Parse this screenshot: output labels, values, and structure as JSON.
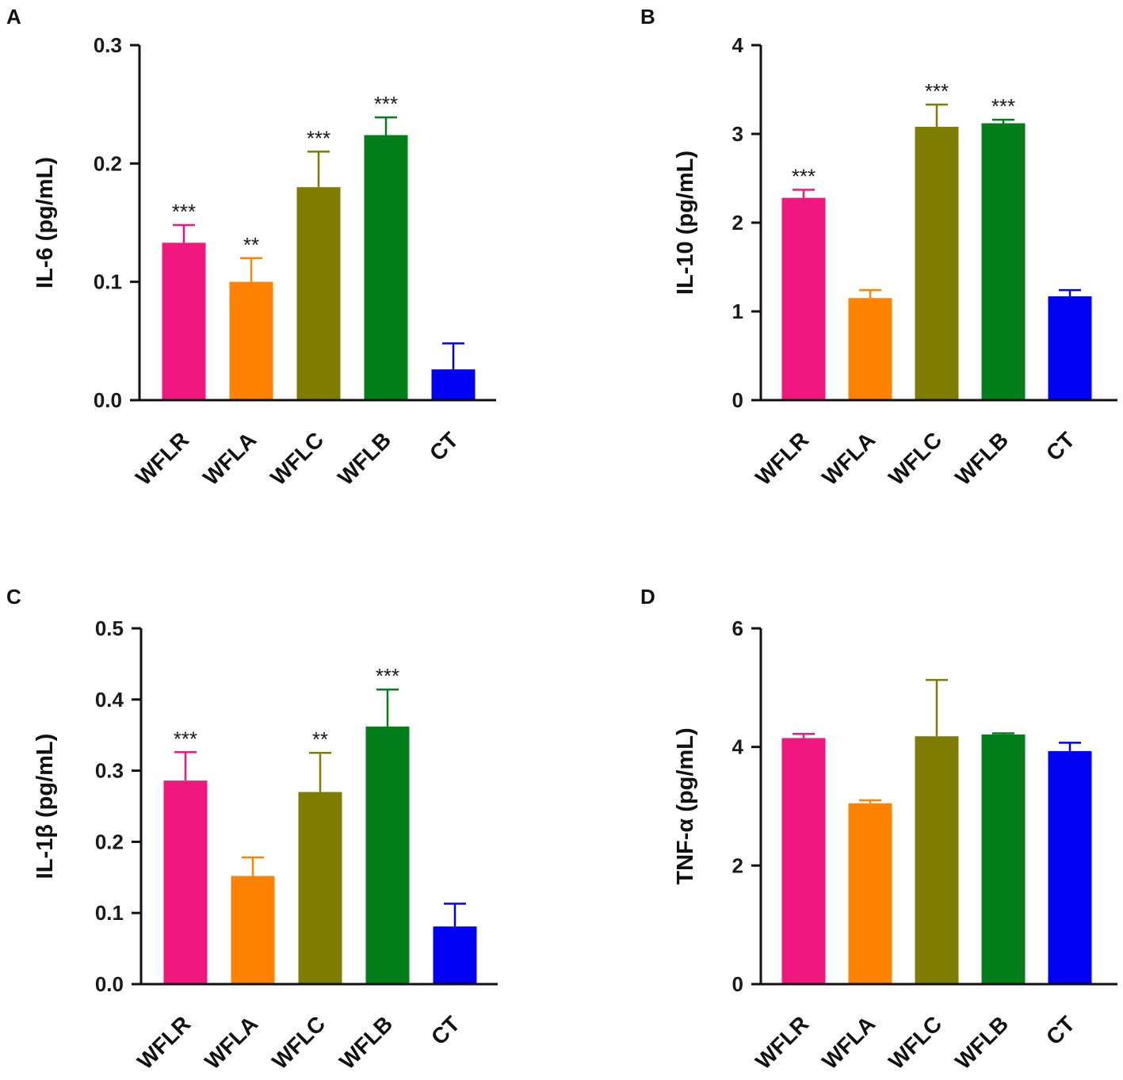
{
  "colors": {
    "WFLR": "#f0177e",
    "WFLA": "#ff8300",
    "WFLC": "#7f7d00",
    "WFLB": "#027e1b",
    "CT": "#0000f5",
    "axis": "#111111",
    "text": "#111111"
  },
  "chart_data": [
    {
      "panel": "A",
      "type": "bar",
      "ylabel": "IL-6 (pg/mL)",
      "ylim": [
        0,
        0.3
      ],
      "yticks": [
        "0.0",
        "0.1",
        "0.2",
        "0.3"
      ],
      "categories": [
        "WFLR",
        "WFLA",
        "WFLC",
        "WFLB",
        "CT"
      ],
      "values": [
        0.133,
        0.1,
        0.18,
        0.224,
        0.026
      ],
      "errors": [
        0.015,
        0.02,
        0.03,
        0.015,
        0.022
      ],
      "significance": [
        "***",
        "**",
        "***",
        "***",
        ""
      ]
    },
    {
      "panel": "B",
      "type": "bar",
      "ylabel": "IL-10 (pg/mL)",
      "ylim": [
        0,
        4
      ],
      "yticks": [
        "0",
        "1",
        "2",
        "3",
        "4"
      ],
      "categories": [
        "WFLR",
        "WFLA",
        "WFLC",
        "WFLB",
        "CT"
      ],
      "values": [
        2.28,
        1.15,
        3.08,
        3.12,
        1.17
      ],
      "errors": [
        0.09,
        0.09,
        0.25,
        0.04,
        0.07
      ],
      "significance": [
        "***",
        "",
        "***",
        "***",
        ""
      ]
    },
    {
      "panel": "C",
      "type": "bar",
      "ylabel": "IL-1β (pg/mL)",
      "ylim": [
        0,
        0.5
      ],
      "yticks": [
        "0.0",
        "0.1",
        "0.2",
        "0.3",
        "0.4",
        "0.5"
      ],
      "categories": [
        "WFLR",
        "WFLA",
        "WFLC",
        "WFLB",
        "CT"
      ],
      "values": [
        0.286,
        0.152,
        0.27,
        0.362,
        0.081
      ],
      "errors": [
        0.04,
        0.026,
        0.055,
        0.052,
        0.032
      ],
      "significance": [
        "***",
        "",
        "**",
        "***",
        ""
      ]
    },
    {
      "panel": "D",
      "type": "bar",
      "ylabel": "TNF-α (pg/mL)",
      "ylim": [
        0,
        6
      ],
      "yticks": [
        "0",
        "2",
        "4",
        "6"
      ],
      "categories": [
        "WFLR",
        "WFLA",
        "WFLC",
        "WFLB",
        "CT"
      ],
      "values": [
        4.15,
        3.05,
        4.18,
        4.21,
        3.93
      ],
      "errors": [
        0.07,
        0.05,
        0.95,
        0.02,
        0.14
      ],
      "significance": [
        "",
        "",
        "",
        "",
        ""
      ]
    }
  ]
}
